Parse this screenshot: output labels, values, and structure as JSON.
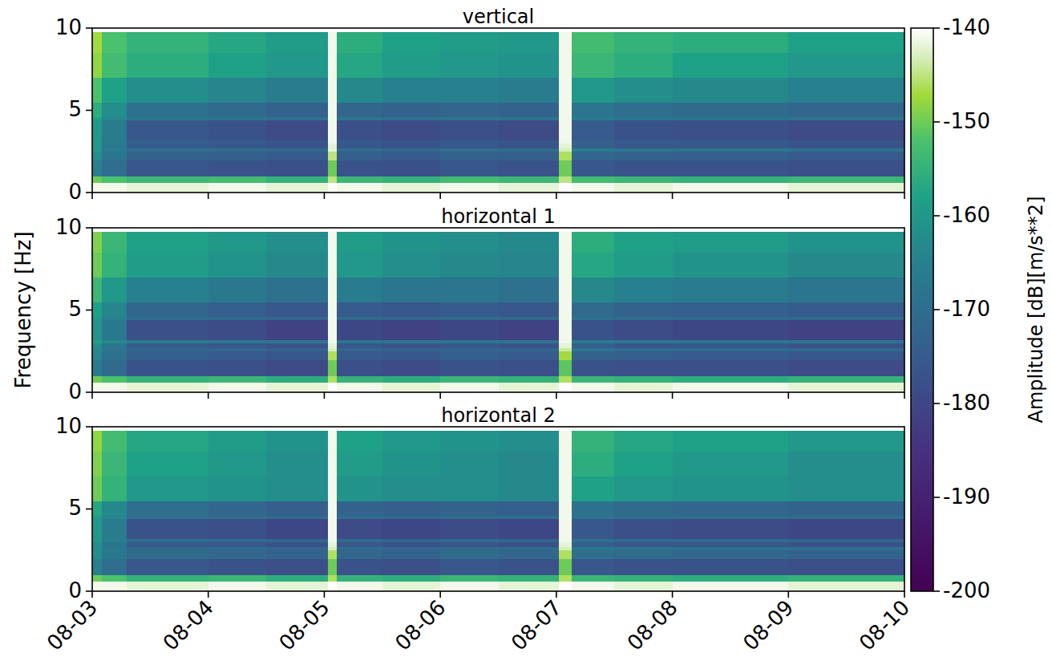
{
  "chart_data": [
    {
      "type": "heatmap",
      "title": "vertical",
      "x_edges": [
        0,
        0.08,
        0.3,
        1,
        1.5,
        2.03,
        2.11,
        2.5,
        3,
        3.5,
        4.02,
        4.13,
        4.5,
        5,
        6,
        7
      ],
      "y_edges": [
        0,
        0.6,
        1.0,
        2.0,
        2.5,
        2.7,
        3.0,
        3.2,
        4.4,
        4.6,
        5.5,
        7.0,
        8.5,
        9.75
      ],
      "cells": [
        [
          -141,
          -141,
          -142,
          -141,
          -142,
          -140,
          -141,
          -142,
          -141,
          -142,
          -140,
          -141,
          -142,
          -141,
          -142
        ],
        [
          -150,
          -152,
          -154,
          -153,
          -155,
          -145,
          -154,
          -155,
          -153,
          -154,
          -145,
          -153,
          -154,
          -155,
          -154
        ],
        [
          -165,
          -170,
          -176,
          -177,
          -178,
          -150,
          -177,
          -178,
          -176,
          -177,
          -150,
          -176,
          -177,
          -177,
          -178
        ],
        [
          -162,
          -168,
          -173,
          -174,
          -175,
          -145,
          -174,
          -175,
          -173,
          -174,
          -146,
          -172,
          -173,
          -174,
          -175
        ],
        [
          -160,
          -166,
          -170,
          -170,
          -171,
          -142,
          -170,
          -171,
          -170,
          -170,
          -143,
          -166,
          -168,
          -168,
          -169
        ],
        [
          -160,
          -167,
          -175,
          -176,
          -177,
          -142,
          -176,
          -177,
          -176,
          -177,
          -142,
          -174,
          -176,
          -176,
          -177
        ],
        [
          -160,
          -166,
          -174,
          -175,
          -176,
          -141,
          -175,
          -176,
          -175,
          -176,
          -141,
          -173,
          -175,
          -175,
          -176
        ],
        [
          -160,
          -166,
          -176,
          -177,
          -179,
          -141,
          -178,
          -179,
          -178,
          -179,
          -141,
          -175,
          -177,
          -178,
          -179
        ],
        [
          -158,
          -163,
          -167,
          -168,
          -169,
          -141,
          -168,
          -169,
          -168,
          -168,
          -141,
          -166,
          -167,
          -168,
          -168
        ],
        [
          -156,
          -162,
          -169,
          -171,
          -173,
          -141,
          -172,
          -173,
          -172,
          -173,
          -141,
          -168,
          -170,
          -171,
          -172
        ],
        [
          -152,
          -158,
          -162,
          -164,
          -166,
          -141,
          -163,
          -165,
          -165,
          -166,
          -141,
          -160,
          -162,
          -163,
          -165
        ],
        [
          -148,
          -153,
          -156,
          -158,
          -160,
          -141,
          -157,
          -159,
          -160,
          -161,
          -141,
          -154,
          -156,
          -158,
          -160
        ],
        [
          -147,
          -152,
          -155,
          -157,
          -159,
          -141,
          -156,
          -158,
          -159,
          -160,
          -141,
          -153,
          -155,
          -156,
          -158
        ]
      ],
      "xlim": [
        0,
        7
      ],
      "ylim": [
        0,
        10
      ],
      "xticks": [
        {
          "value": 0,
          "label": "08-03"
        },
        {
          "value": 1,
          "label": "08-04"
        },
        {
          "value": 2,
          "label": "08-05"
        },
        {
          "value": 3,
          "label": "08-06"
        },
        {
          "value": 4,
          "label": "08-07"
        },
        {
          "value": 5,
          "label": "08-08"
        },
        {
          "value": 6,
          "label": "08-09"
        },
        {
          "value": 7,
          "label": "08-10"
        }
      ],
      "yticks": [
        0,
        5,
        10
      ],
      "tick_labels": "y",
      "colorbar": {
        "label": "Amplitude [dB][m/s**2]",
        "range": [
          -200,
          -140
        ],
        "ticks": [
          -140,
          -150,
          -160,
          -170,
          -180,
          -190,
          -200
        ]
      }
    },
    {
      "type": "heatmap",
      "title": "horizontal 1",
      "y_label": "Frequency [Hz]",
      "x_edges": [
        0,
        0.08,
        0.3,
        1,
        1.5,
        2.03,
        2.11,
        2.5,
        3,
        3.5,
        4.02,
        4.13,
        4.5,
        5,
        6,
        7
      ],
      "y_edges": [
        0,
        0.6,
        1.0,
        2.0,
        2.5,
        2.7,
        3.0,
        3.2,
        4.4,
        4.6,
        5.5,
        7.0,
        8.5,
        9.75
      ],
      "cells": [
        [
          -141,
          -141,
          -142,
          -141,
          -142,
          -140,
          -141,
          -142,
          -141,
          -142,
          -140,
          -141,
          -142,
          -141,
          -142
        ],
        [
          -150,
          -152,
          -155,
          -154,
          -156,
          -146,
          -155,
          -156,
          -154,
          -155,
          -146,
          -154,
          -155,
          -156,
          -155
        ],
        [
          -166,
          -171,
          -177,
          -178,
          -179,
          -150,
          -178,
          -179,
          -177,
          -178,
          -151,
          -177,
          -178,
          -178,
          -179
        ],
        [
          -164,
          -169,
          -174,
          -175,
          -176,
          -146,
          -175,
          -176,
          -174,
          -175,
          -147,
          -173,
          -174,
          -175,
          -176
        ],
        [
          -163,
          -168,
          -172,
          -172,
          -173,
          -143,
          -172,
          -173,
          -172,
          -172,
          -144,
          -168,
          -170,
          -170,
          -171
        ],
        [
          -162,
          -168,
          -175,
          -176,
          -177,
          -142,
          -176,
          -177,
          -176,
          -177,
          -142,
          -174,
          -176,
          -176,
          -177
        ],
        [
          -158,
          -163,
          -166,
          -167,
          -168,
          -141,
          -167,
          -168,
          -167,
          -168,
          -141,
          -166,
          -167,
          -167,
          -168
        ],
        [
          -161,
          -167,
          -178,
          -179,
          -181,
          -141,
          -180,
          -181,
          -180,
          -181,
          -141,
          -177,
          -179,
          -180,
          -181
        ],
        [
          -160,
          -165,
          -170,
          -171,
          -172,
          -141,
          -171,
          -172,
          -171,
          -171,
          -141,
          -169,
          -170,
          -171,
          -171
        ],
        [
          -158,
          -164,
          -172,
          -174,
          -176,
          -141,
          -175,
          -176,
          -175,
          -176,
          -141,
          -171,
          -173,
          -174,
          -175
        ],
        [
          -154,
          -160,
          -165,
          -167,
          -169,
          -141,
          -166,
          -168,
          -168,
          -169,
          -141,
          -163,
          -165,
          -166,
          -168
        ],
        [
          -150,
          -155,
          -159,
          -161,
          -163,
          -141,
          -160,
          -162,
          -163,
          -164,
          -141,
          -157,
          -159,
          -161,
          -163
        ],
        [
          -149,
          -154,
          -158,
          -160,
          -162,
          -141,
          -159,
          -161,
          -162,
          -163,
          -141,
          -156,
          -158,
          -159,
          -161
        ]
      ],
      "xlim": [
        0,
        7
      ],
      "ylim": [
        0,
        10
      ],
      "xticks": [
        {
          "value": 0,
          "label": "08-03"
        },
        {
          "value": 1,
          "label": "08-04"
        },
        {
          "value": 2,
          "label": "08-05"
        },
        {
          "value": 3,
          "label": "08-06"
        },
        {
          "value": 4,
          "label": "08-07"
        },
        {
          "value": 5,
          "label": "08-08"
        },
        {
          "value": 6,
          "label": "08-09"
        },
        {
          "value": 7,
          "label": "08-10"
        }
      ],
      "yticks": [
        0,
        5,
        10
      ],
      "tick_labels": "y"
    },
    {
      "type": "heatmap",
      "title": "horizontal 2",
      "x_edges": [
        0,
        0.08,
        0.3,
        1,
        1.5,
        2.03,
        2.11,
        2.5,
        3,
        3.5,
        4.02,
        4.13,
        4.5,
        5,
        6,
        7
      ],
      "y_edges": [
        0,
        0.6,
        1.0,
        2.0,
        2.5,
        2.7,
        3.0,
        3.2,
        4.4,
        4.6,
        5.5,
        7.0,
        8.5,
        9.75
      ],
      "cells": [
        [
          -141,
          -141,
          -142,
          -141,
          -142,
          -140,
          -141,
          -142,
          -141,
          -142,
          -140,
          -141,
          -142,
          -141,
          -142
        ],
        [
          -150,
          -152,
          -155,
          -154,
          -156,
          -146,
          -155,
          -156,
          -154,
          -155,
          -146,
          -154,
          -155,
          -156,
          -155
        ],
        [
          -165,
          -170,
          -176,
          -177,
          -178,
          -150,
          -177,
          -178,
          -176,
          -177,
          -150,
          -176,
          -177,
          -177,
          -178
        ],
        [
          -162,
          -167,
          -171,
          -172,
          -173,
          -146,
          -172,
          -173,
          -171,
          -172,
          -146,
          -170,
          -171,
          -172,
          -173
        ],
        [
          -162,
          -167,
          -171,
          -171,
          -172,
          -143,
          -171,
          -172,
          -171,
          -171,
          -143,
          -167,
          -169,
          -169,
          -170
        ],
        [
          -162,
          -168,
          -175,
          -176,
          -177,
          -142,
          -176,
          -177,
          -176,
          -177,
          -142,
          -174,
          -176,
          -176,
          -177
        ],
        [
          -160,
          -165,
          -170,
          -171,
          -172,
          -141,
          -171,
          -172,
          -171,
          -172,
          -141,
          -170,
          -171,
          -171,
          -172
        ],
        [
          -160,
          -166,
          -177,
          -178,
          -180,
          -141,
          -179,
          -180,
          -179,
          -180,
          -141,
          -176,
          -178,
          -179,
          -180
        ],
        [
          -159,
          -164,
          -169,
          -170,
          -171,
          -141,
          -170,
          -171,
          -170,
          -170,
          -141,
          -168,
          -169,
          -170,
          -170
        ],
        [
          -157,
          -163,
          -170,
          -172,
          -174,
          -141,
          -173,
          -174,
          -173,
          -174,
          -141,
          -169,
          -171,
          -172,
          -173
        ],
        [
          -150,
          -155,
          -160,
          -161,
          -162,
          -141,
          -161,
          -162,
          -162,
          -163,
          -141,
          -158,
          -160,
          -161,
          -162
        ],
        [
          -149,
          -154,
          -158,
          -160,
          -162,
          -141,
          -159,
          -161,
          -162,
          -163,
          -141,
          -156,
          -158,
          -160,
          -162
        ],
        [
          -148,
          -153,
          -157,
          -159,
          -161,
          -141,
          -158,
          -160,
          -161,
          -162,
          -141,
          -155,
          -157,
          -158,
          -160
        ]
      ],
      "xlim": [
        0,
        7
      ],
      "ylim": [
        0,
        10
      ],
      "xticks": [
        {
          "value": 0,
          "label": "08-03"
        },
        {
          "value": 1,
          "label": "08-04"
        },
        {
          "value": 2,
          "label": "08-05"
        },
        {
          "value": 3,
          "label": "08-06"
        },
        {
          "value": 4,
          "label": "08-07"
        },
        {
          "value": 5,
          "label": "08-08"
        },
        {
          "value": 6,
          "label": "08-09"
        },
        {
          "value": 7,
          "label": "08-10"
        }
      ],
      "yticks": [
        0,
        5,
        10
      ]
    }
  ]
}
